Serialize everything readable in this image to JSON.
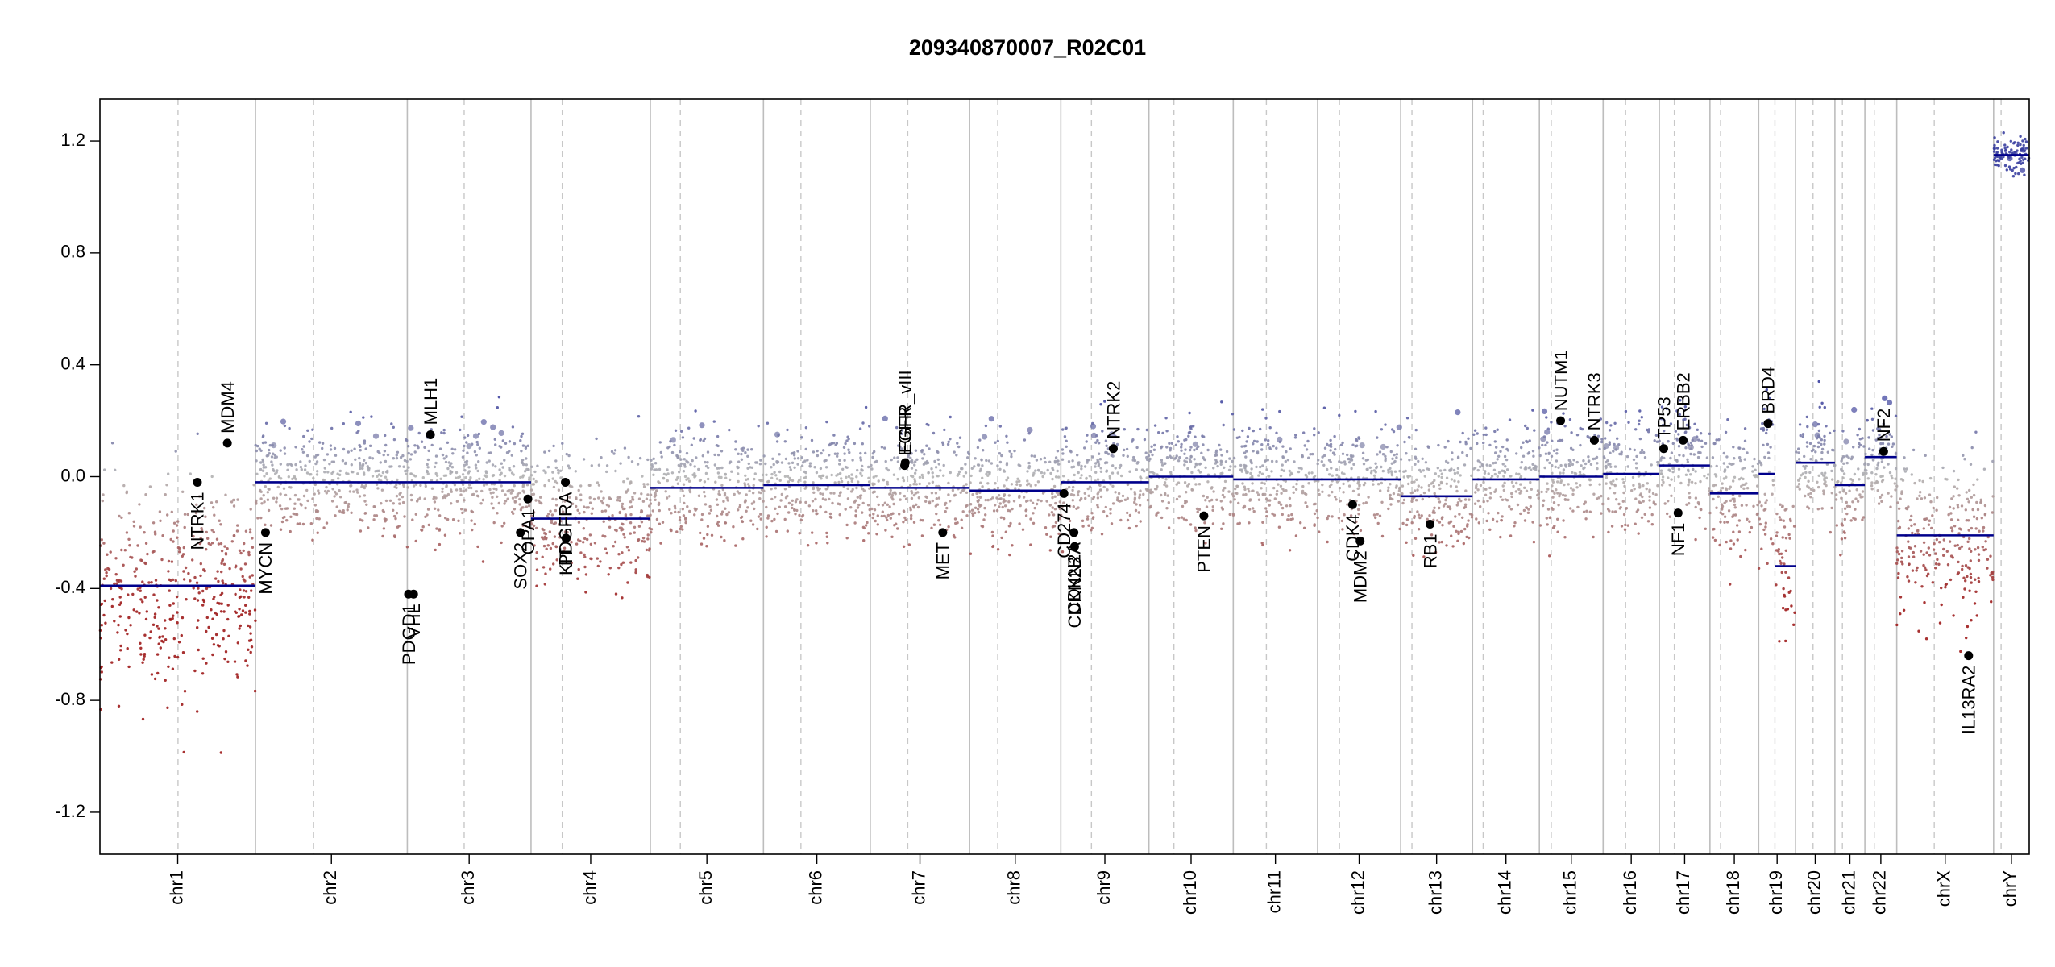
{
  "chart_data": {
    "type": "scatter",
    "title": "209340870007_R02C01",
    "xlabel": "",
    "ylabel": "",
    "ylim": [
      -1.35,
      1.35
    ],
    "yticks": [
      -1.2,
      -0.8,
      -0.4,
      0.0,
      0.4,
      0.8,
      1.2
    ],
    "ytick_labels": [
      "-1.2",
      "-0.8",
      "-0.4",
      "0.0",
      "0.4",
      "0.8",
      "1.2"
    ],
    "grid": false,
    "legend": "none",
    "colors": {
      "gain": "#3a3fa0",
      "loss": "#9e1b1b",
      "neutral": "#b3b3b3",
      "segment": "#00008b",
      "gene_point": "#000000",
      "chrom_boundary": "#bdbdbd",
      "centromere": "#c8c8c8"
    },
    "chromosomes": [
      {
        "name": "chr1",
        "length": 249,
        "centromere": 125,
        "segments": [
          {
            "start": 0,
            "end": 249,
            "value": -0.39
          }
        ],
        "spread": 0.25,
        "bias": -0.45
      },
      {
        "name": "chr2",
        "length": 243,
        "centromere": 93,
        "segments": [
          {
            "start": 0,
            "end": 243,
            "value": -0.02
          }
        ],
        "spread": 0.12,
        "bias": 0.04
      },
      {
        "name": "chr3",
        "length": 198,
        "centromere": 91,
        "segments": [
          {
            "start": 0,
            "end": 198,
            "value": -0.02
          }
        ],
        "spread": 0.12,
        "bias": 0.04
      },
      {
        "name": "chr4",
        "length": 191,
        "centromere": 50,
        "segments": [
          {
            "start": 0,
            "end": 191,
            "value": -0.15
          }
        ],
        "spread": 0.15,
        "bias": -0.12
      },
      {
        "name": "chr5",
        "length": 181,
        "centromere": 48,
        "segments": [
          {
            "start": 0,
            "end": 181,
            "value": -0.04
          }
        ],
        "spread": 0.12,
        "bias": 0.03
      },
      {
        "name": "chr6",
        "length": 171,
        "centromere": 60,
        "segments": [
          {
            "start": 0,
            "end": 171,
            "value": -0.03
          }
        ],
        "spread": 0.12,
        "bias": 0.04
      },
      {
        "name": "chr7",
        "length": 159,
        "centromere": 60,
        "segments": [
          {
            "start": 0,
            "end": 159,
            "value": -0.04
          }
        ],
        "spread": 0.12,
        "bias": 0.04
      },
      {
        "name": "chr8",
        "length": 146,
        "centromere": 45,
        "segments": [
          {
            "start": 0,
            "end": 146,
            "value": -0.05
          }
        ],
        "spread": 0.12,
        "bias": 0.02
      },
      {
        "name": "chr9",
        "length": 141,
        "centromere": 49,
        "segments": [
          {
            "start": 0,
            "end": 141,
            "value": -0.02
          }
        ],
        "spread": 0.12,
        "bias": 0.03
      },
      {
        "name": "chr10",
        "length": 135,
        "centromere": 40,
        "segments": [
          {
            "start": 0,
            "end": 135,
            "value": 0.0
          }
        ],
        "spread": 0.12,
        "bias": 0.04
      },
      {
        "name": "chr11",
        "length": 135,
        "centromere": 53,
        "segments": [
          {
            "start": 0,
            "end": 135,
            "value": -0.01
          }
        ],
        "spread": 0.12,
        "bias": 0.05
      },
      {
        "name": "chr12",
        "length": 133,
        "centromere": 35,
        "segments": [
          {
            "start": 0,
            "end": 133,
            "value": -0.01
          }
        ],
        "spread": 0.12,
        "bias": 0.04
      },
      {
        "name": "chr13",
        "length": 115,
        "centromere": 18,
        "segments": [
          {
            "start": 0,
            "end": 115,
            "value": -0.07
          }
        ],
        "spread": 0.12,
        "bias": 0.0
      },
      {
        "name": "chr14",
        "length": 107,
        "centromere": 17,
        "segments": [
          {
            "start": 0,
            "end": 107,
            "value": -0.01
          }
        ],
        "spread": 0.12,
        "bias": 0.04
      },
      {
        "name": "chr15",
        "length": 102,
        "centromere": 19,
        "segments": [
          {
            "start": 0,
            "end": 102,
            "value": 0.0
          }
        ],
        "spread": 0.13,
        "bias": 0.06
      },
      {
        "name": "chr16",
        "length": 90,
        "centromere": 36,
        "segments": [
          {
            "start": 0,
            "end": 90,
            "value": 0.01
          }
        ],
        "spread": 0.13,
        "bias": 0.06
      },
      {
        "name": "chr17",
        "length": 81,
        "centromere": 24,
        "segments": [
          {
            "start": 0,
            "end": 81,
            "value": 0.04
          }
        ],
        "spread": 0.13,
        "bias": 0.07
      },
      {
        "name": "chr18",
        "length": 78,
        "centromere": 17,
        "segments": [
          {
            "start": 0,
            "end": 78,
            "value": -0.06
          }
        ],
        "spread": 0.13,
        "bias": 0.0
      },
      {
        "name": "chr19",
        "length": 59,
        "centromere": 26,
        "segments": [
          {
            "start": 0,
            "end": 26,
            "value": 0.01
          },
          {
            "start": 26,
            "end": 59,
            "value": -0.32
          }
        ],
        "spread": 0.2,
        "bias": -0.15
      },
      {
        "name": "chr20",
        "length": 63,
        "centromere": 28,
        "segments": [
          {
            "start": 0,
            "end": 63,
            "value": 0.05
          }
        ],
        "spread": 0.13,
        "bias": 0.07
      },
      {
        "name": "chr21",
        "length": 48,
        "centromere": 12,
        "segments": [
          {
            "start": 0,
            "end": 48,
            "value": -0.03
          }
        ],
        "spread": 0.12,
        "bias": 0.02
      },
      {
        "name": "chr22",
        "length": 51,
        "centromere": 15,
        "segments": [
          {
            "start": 0,
            "end": 51,
            "value": 0.07
          }
        ],
        "spread": 0.12,
        "bias": 0.06
      },
      {
        "name": "chrX",
        "length": 155,
        "centromere": 60,
        "segments": [
          {
            "start": 0,
            "end": 155,
            "value": -0.21
          }
        ],
        "spread": 0.18,
        "bias": -0.28
      },
      {
        "name": "chrY",
        "length": 57,
        "centromere": 12,
        "segments": [
          {
            "start": 0,
            "end": 57,
            "value": 1.15
          }
        ],
        "spread": 0.05,
        "bias": 1.15
      }
    ],
    "genes": [
      {
        "name": "NTRK1",
        "chrom": "chr1",
        "pos": 156,
        "value": -0.02,
        "label_side": "below"
      },
      {
        "name": "MDM4",
        "chrom": "chr1",
        "pos": 204,
        "value": 0.12,
        "label_side": "above"
      },
      {
        "name": "MYCN",
        "chrom": "chr2",
        "pos": 16,
        "value": -0.2,
        "label_side": "below"
      },
      {
        "name": "PDGFRA",
        "chrom": "chr4",
        "pos": 55,
        "value": -0.02,
        "label_side": "below"
      },
      {
        "name": "MLH1",
        "chrom": "chr3",
        "pos": 37,
        "value": 0.15,
        "label_side": "above"
      },
      {
        "name": "VHL",
        "chrom": "chr3",
        "pos": 10,
        "value": -0.42,
        "label_side": "below"
      },
      {
        "name": "PDGD1",
        "chrom": "chr3",
        "pos": 2,
        "value": -0.42,
        "label_side": "below"
      },
      {
        "name": "SOX2",
        "chrom": "chr3",
        "pos": 181,
        "value": -0.2,
        "label_side": "below"
      },
      {
        "name": "OPA1",
        "chrom": "chr3",
        "pos": 193,
        "value": -0.08,
        "label_side": "below"
      },
      {
        "name": "KIT",
        "chrom": "chr4",
        "pos": 56,
        "value": -0.22,
        "label_side": "below"
      },
      {
        "name": "EGFR",
        "chrom": "chr7",
        "pos": 55,
        "value": 0.04,
        "label_side": "above"
      },
      {
        "name": "EGFR_vIII",
        "chrom": "chr7",
        "pos": 56,
        "value": 0.05,
        "label_side": "above"
      },
      {
        "name": "MET",
        "chrom": "chr7",
        "pos": 116,
        "value": -0.2,
        "label_side": "below"
      },
      {
        "name": "CD274",
        "chrom": "chr9",
        "pos": 5,
        "value": -0.06,
        "label_side": "below"
      },
      {
        "name": "CDKN2A",
        "chrom": "chr9",
        "pos": 21,
        "value": -0.2,
        "label_side": "below"
      },
      {
        "name": "CDKN2B",
        "chrom": "chr9",
        "pos": 22,
        "value": -0.25,
        "label_side": "below"
      },
      {
        "name": "NTRK2",
        "chrom": "chr9",
        "pos": 84,
        "value": 0.1,
        "label_side": "above"
      },
      {
        "name": "PTEN",
        "chrom": "chr10",
        "pos": 88,
        "value": -0.14,
        "label_side": "below"
      },
      {
        "name": "CDK4",
        "chrom": "chr12",
        "pos": 56,
        "value": -0.1,
        "label_side": "below"
      },
      {
        "name": "MDM2",
        "chrom": "chr12",
        "pos": 68,
        "value": -0.23,
        "label_side": "below"
      },
      {
        "name": "RB1",
        "chrom": "chr13",
        "pos": 47,
        "value": -0.17,
        "label_side": "below"
      },
      {
        "name": "NUTM1",
        "chrom": "chr15",
        "pos": 34,
        "value": 0.2,
        "label_side": "above"
      },
      {
        "name": "NTRK3",
        "chrom": "chr15",
        "pos": 88,
        "value": 0.13,
        "label_side": "above"
      },
      {
        "name": "TP53",
        "chrom": "chr17",
        "pos": 7,
        "value": 0.1,
        "label_side": "above"
      },
      {
        "name": "ERBB2",
        "chrom": "chr17",
        "pos": 38,
        "value": 0.13,
        "label_side": "above"
      },
      {
        "name": "NF1",
        "chrom": "chr17",
        "pos": 30,
        "value": -0.13,
        "label_side": "below"
      },
      {
        "name": "BRD4",
        "chrom": "chr19",
        "pos": 15,
        "value": 0.19,
        "label_side": "above"
      },
      {
        "name": "NF2",
        "chrom": "chr22",
        "pos": 30,
        "value": 0.09,
        "label_side": "above"
      },
      {
        "name": "IL13RA2",
        "chrom": "chrX",
        "pos": 115,
        "value": -0.64,
        "label_side": "below"
      }
    ]
  }
}
